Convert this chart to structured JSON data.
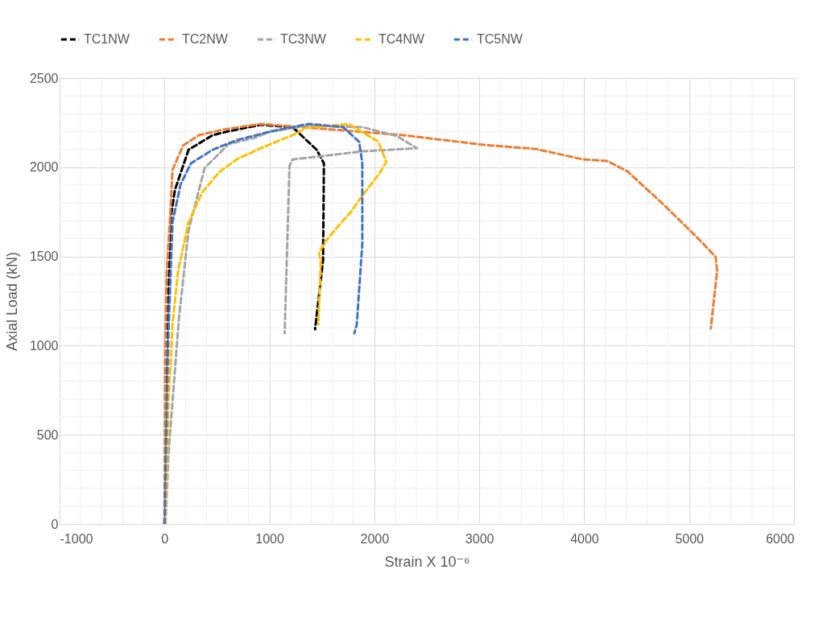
{
  "chart_data": {
    "type": "line",
    "xlabel": "Strain X 10⁻⁶",
    "ylabel": "Axial Load (kN)",
    "xlim": [
      -1000,
      6000
    ],
    "xticks": [
      -1000,
      0,
      1000,
      2000,
      3000,
      4000,
      5000,
      6000
    ],
    "ylim": [
      0,
      2500
    ],
    "yticks": [
      0,
      500,
      1000,
      1500,
      2000,
      2500
    ],
    "grid": true,
    "legend": "top",
    "marker": "none",
    "line_style": "dashed",
    "series": [
      {
        "name": "TC1NW",
        "color": "#000000",
        "x": [
          0,
          20,
          38,
          61,
          99,
          229,
          458,
          611,
          916,
          1221,
          1450,
          1519,
          1511,
          1435
        ],
        "values": [
          0,
          700,
          1273,
          1724,
          1873,
          2098,
          2180,
          2202,
          2238,
          2225,
          2098,
          2022,
          1480,
          1092
        ]
      },
      {
        "name": "TC2NW",
        "color": "#ed7d31",
        "x": [
          0,
          5,
          20,
          53,
          76,
          176,
          328,
          557,
          916,
          2277,
          3053,
          3534,
          3992,
          4221,
          4412,
          4756,
          5092,
          5252,
          5267,
          5206
        ],
        "values": [
          0,
          1000,
          1400,
          1724,
          1985,
          2121,
          2180,
          2211,
          2243,
          2180,
          2125,
          2103,
          2044,
          2035,
          1977,
          1791,
          1597,
          1498,
          1421,
          1097
        ]
      },
      {
        "name": "TC3NW",
        "color": "#a5a5a5",
        "x": [
          10,
          38,
          137,
          229,
          382,
          611,
          863,
          1015,
          1374,
          1885,
          2214,
          2405,
          1885,
          1221,
          1191,
          1145
        ],
        "values": [
          0,
          397,
          1151,
          1647,
          1995,
          2130,
          2166,
          2202,
          2234,
          2225,
          2175,
          2107,
          2089,
          2044,
          2008,
          1069
        ]
      },
      {
        "name": "TC4NW",
        "color": "#ffc000",
        "x": [
          8,
          38,
          61,
          76,
          130,
          229,
          359,
          519,
          687,
          916,
          1221,
          1351,
          1756,
          2038,
          2114,
          2046,
          1969,
          1885,
          1771,
          1603,
          1527,
          1473,
          1489,
          1466
        ],
        "values": [
          0,
          700,
          925,
          1119,
          1421,
          1692,
          1859,
          1972,
          2044,
          2107,
          2180,
          2220,
          2243,
          2143,
          2031,
          1963,
          1904,
          1841,
          1746,
          1634,
          1579,
          1521,
          1467,
          1119
        ]
      },
      {
        "name": "TC5NW",
        "color": "#4472c4",
        "x": [
          0,
          23,
          38,
          76,
          153,
          252,
          458,
          687,
          992,
          1374,
          1702,
          1855,
          1885,
          1885,
          1832,
          1809
        ],
        "values": [
          0,
          700,
          1074,
          1692,
          1904,
          2022,
          2098,
          2152,
          2198,
          2243,
          2225,
          2143,
          2022,
          1570,
          1119,
          1069
        ]
      }
    ]
  }
}
